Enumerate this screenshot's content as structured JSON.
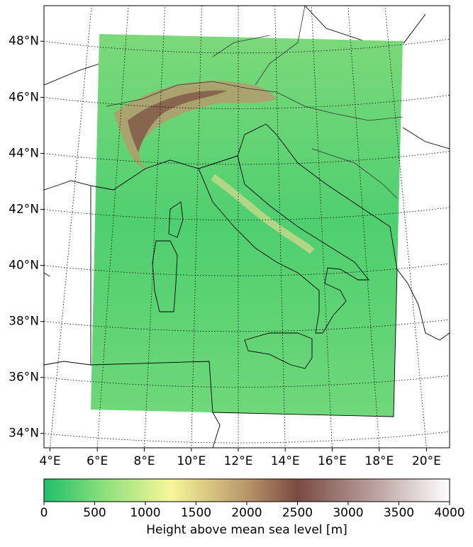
{
  "map": {
    "lat_ticks": [
      {
        "value": 34,
        "label": "34°N"
      },
      {
        "value": 36,
        "label": "36°N"
      },
      {
        "value": 38,
        "label": "38°N"
      },
      {
        "value": 40,
        "label": "40°N"
      },
      {
        "value": 42,
        "label": "42°N"
      },
      {
        "value": 44,
        "label": "44°N"
      },
      {
        "value": 46,
        "label": "46°N"
      },
      {
        "value": 48,
        "label": "48°N"
      }
    ],
    "lon_ticks": [
      {
        "value": 4,
        "label": "4°E"
      },
      {
        "value": 6,
        "label": "6°E"
      },
      {
        "value": 8,
        "label": "8°E"
      },
      {
        "value": 10,
        "label": "10°E"
      },
      {
        "value": 12,
        "label": "12°E"
      },
      {
        "value": 14,
        "label": "14°E"
      },
      {
        "value": 16,
        "label": "16°E"
      },
      {
        "value": 18,
        "label": "18°E"
      },
      {
        "value": 20,
        "label": "20°E"
      }
    ],
    "grid": true
  },
  "colorbar": {
    "label": "Height above mean sea level [m]",
    "lim": [
      0,
      4000
    ],
    "ticks": [
      0,
      500,
      1000,
      1500,
      2000,
      2500,
      3000,
      3500,
      4000
    ],
    "colormap": [
      {
        "value": 0,
        "color": "#1fbf6a"
      },
      {
        "value": 600,
        "color": "#8fe07c"
      },
      {
        "value": 1250,
        "color": "#f7f79a"
      },
      {
        "value": 2000,
        "color": "#b8966a"
      },
      {
        "value": 2500,
        "color": "#7a4a42"
      },
      {
        "value": 3200,
        "color": "#b49a98"
      },
      {
        "value": 4000,
        "color": "#ffffff"
      }
    ]
  }
}
